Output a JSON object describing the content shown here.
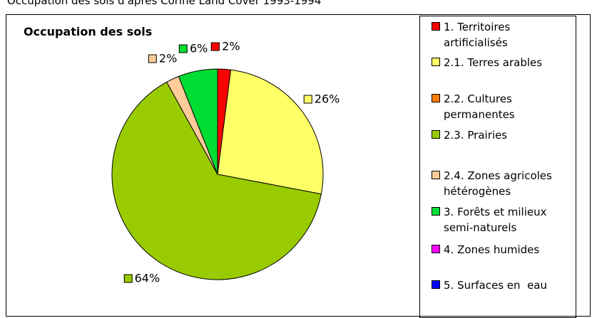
{
  "chart_data": {
    "type": "pie",
    "caption": "Occupation des sols d'après Corine Land Cover 1993-1994",
    "title": "Occupation des sols",
    "categories": [
      "1. Territoires artificialisés",
      "2.1. Terres arables",
      "2.2. Cultures permanentes",
      "2.3. Prairies",
      "2.4. Zones agricoles hétérogènes",
      "3. Forêts et milieux semi-naturels",
      "4. Zones humides",
      "5. Surfaces en  eau"
    ],
    "values": [
      2,
      26,
      0,
      64,
      2,
      6,
      0,
      0
    ],
    "value_labels": [
      "2%",
      "26%",
      null,
      "64%",
      "2%",
      "6%",
      null,
      null
    ],
    "colors": [
      "#ff0000",
      "#ffff66",
      "#ff8000",
      "#99cc00",
      "#ffcc99",
      "#00dd33",
      "#ff00ff",
      "#0000ff"
    ],
    "legend": "right"
  }
}
